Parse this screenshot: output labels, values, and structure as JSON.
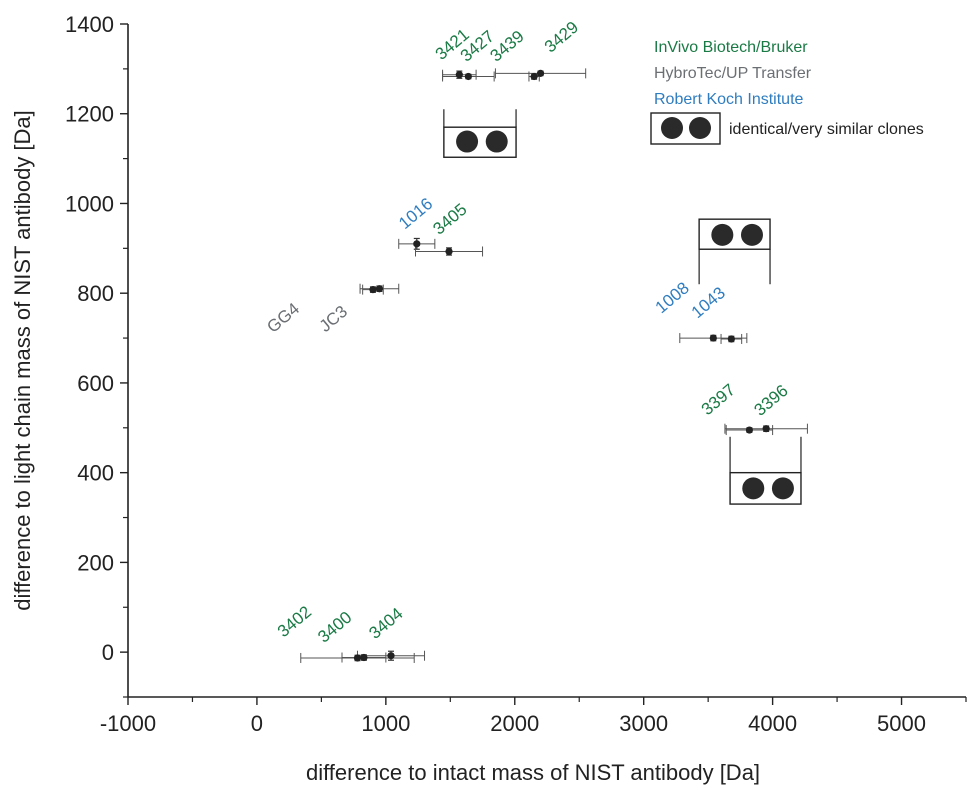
{
  "chart_data": {
    "type": "scatter",
    "xlabel": "difference to intact mass of NIST antibody [Da]",
    "ylabel": "difference to light chain mass of NIST antibody [Da]",
    "xlim": [
      -1000,
      5500
    ],
    "ylim": [
      -100,
      1400
    ],
    "x_ticks": [
      -1000,
      0,
      1000,
      2000,
      3000,
      4000,
      5000
    ],
    "y_ticks": [
      0,
      200,
      400,
      600,
      800,
      1000,
      1200,
      1400
    ],
    "x_tick_labels": [
      "-1000",
      "0",
      "1000",
      "2000",
      "3000",
      "4000",
      "5000"
    ],
    "y_tick_labels": [
      "0",
      "200",
      "400",
      "600",
      "800",
      "1000",
      "1200",
      "1400"
    ],
    "colors": {
      "InVivo Biotech/Bruker": "#1a7a45",
      "HybroTec/UP Transfer": "#6b6f73",
      "Robert Koch Institute": "#2f7dc0",
      "marker": "#222222",
      "errorbar": "#555555"
    },
    "legend": {
      "position": "top-right",
      "entries": [
        {
          "label": "InVivo Biotech/Bruker"
        },
        {
          "label": "HybroTec/UP Transfer"
        },
        {
          "label": "Robert Koch Institute"
        }
      ],
      "clone_symbol_label": "identical/very similar clones"
    },
    "points": [
      {
        "label": "3421",
        "group": "InVivo Biotech/Bruker",
        "x": 1570,
        "y": 1287,
        "xerr": 130,
        "yerr": 8
      },
      {
        "label": "3427",
        "group": "InVivo Biotech/Bruker",
        "x": 1640,
        "y": 1283,
        "xerr": 200,
        "yerr": 5
      },
      {
        "label": "3439",
        "group": "InVivo Biotech/Bruker",
        "x": 2150,
        "y": 1283,
        "xerr": 40,
        "yerr": 6
      },
      {
        "label": "3429",
        "group": "InVivo Biotech/Bruker",
        "x": 2200,
        "y": 1290,
        "xerr": 350,
        "yerr": 5
      },
      {
        "label": "1016",
        "group": "Robert Koch Institute",
        "x": 1240,
        "y": 910,
        "xerr": 140,
        "yerr": 12
      },
      {
        "label": "3405",
        "group": "InVivo Biotech/Bruker",
        "x": 1490,
        "y": 893,
        "xerr": 260,
        "yerr": 8
      },
      {
        "label": "GG4",
        "group": "HybroTec/UP Transfer",
        "x": 900,
        "y": 808,
        "xerr": 80,
        "yerr": 6
      },
      {
        "label": "JC3",
        "group": "HybroTec/UP Transfer",
        "x": 950,
        "y": 810,
        "xerr": 150,
        "yerr": 6
      },
      {
        "label": "1008",
        "group": "Robert Koch Institute",
        "x": 3540,
        "y": 700,
        "xerr": 260,
        "yerr": 6
      },
      {
        "label": "1043",
        "group": "Robert Koch Institute",
        "x": 3680,
        "y": 698,
        "xerr": 80,
        "yerr": 6
      },
      {
        "label": "3397",
        "group": "InVivo Biotech/Bruker",
        "x": 3820,
        "y": 495,
        "xerr": 180,
        "yerr": 5
      },
      {
        "label": "3396",
        "group": "InVivo Biotech/Bruker",
        "x": 3950,
        "y": 498,
        "xerr": 320,
        "yerr": 6
      },
      {
        "label": "3402",
        "group": "InVivo Biotech/Bruker",
        "x": 780,
        "y": -13,
        "xerr": 440,
        "yerr": 6
      },
      {
        "label": "3400",
        "group": "InVivo Biotech/Bruker",
        "x": 830,
        "y": -12,
        "xerr": 170,
        "yerr": 6
      },
      {
        "label": "3404",
        "group": "InVivo Biotech/Bruker",
        "x": 1040,
        "y": -8,
        "xerr": 260,
        "yerr": 10
      }
    ],
    "clone_boxes": [
      {
        "note": "identical/very similar clones",
        "x_range": [
          1450,
          2010
        ],
        "y_range": [
          1103,
          1170
        ],
        "circles_y": 1138,
        "circle_x": [
          1630,
          1860
        ]
      },
      {
        "note": "identical/very similar clones",
        "x_range": [
          3430,
          3980
        ],
        "y_range": [
          898,
          965
        ],
        "circles_y": 930,
        "circle_x": [
          3610,
          3840
        ]
      },
      {
        "note": "identical/very similar clones",
        "x_range": [
          3670,
          4220
        ],
        "y_range": [
          330,
          400
        ],
        "circles_y": 365,
        "circle_x": [
          3850,
          4080
        ]
      }
    ]
  }
}
